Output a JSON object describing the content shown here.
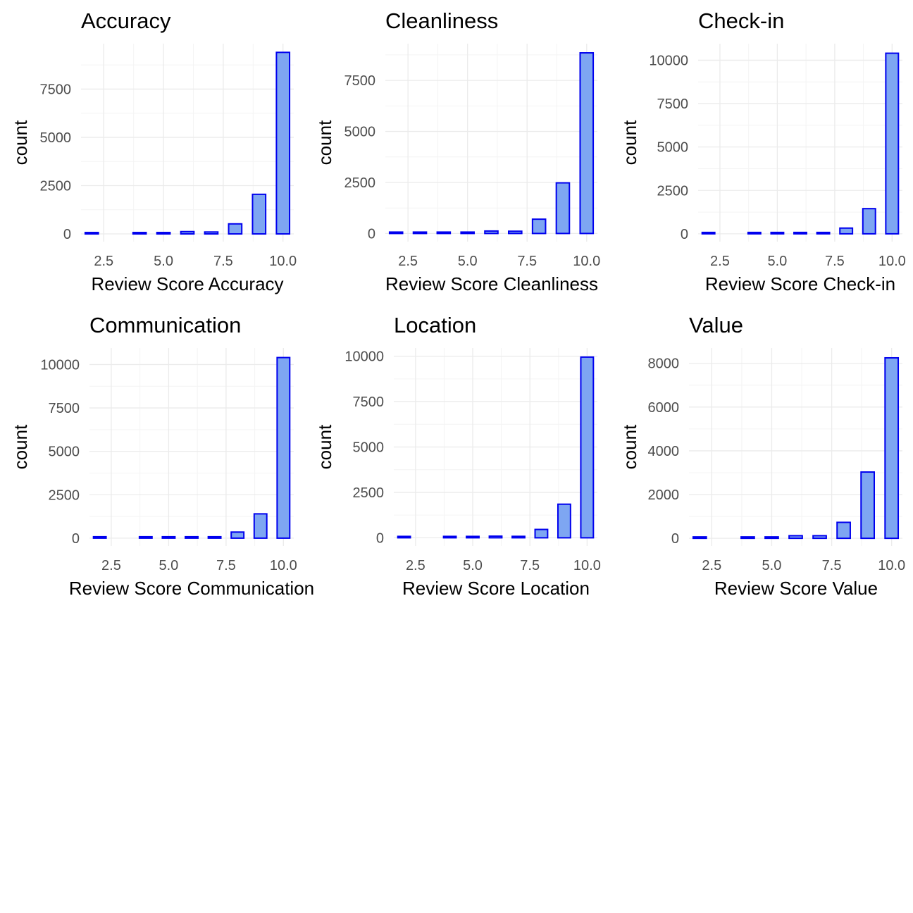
{
  "colors": {
    "bar_fill": "#7ea6f2",
    "bar_stroke": "#0000ee",
    "grid": "#ebebeb",
    "tick_text": "#4d4d4d"
  },
  "chart_data": [
    {
      "type": "bar",
      "title": "Accuracy",
      "xlabel": "Review Score Accuracy",
      "ylabel": "count",
      "x": [
        2,
        4,
        5,
        6,
        7,
        8,
        9,
        10
      ],
      "values": [
        45,
        25,
        30,
        120,
        100,
        520,
        2050,
        9400
      ],
      "xlim": [
        1.55,
        10.45
      ],
      "ylim": [
        -400,
        9850
      ],
      "x_ticks": [
        2.5,
        5.0,
        7.5,
        10.0
      ],
      "x_tick_labels": [
        "2.5",
        "5.0",
        "7.5",
        "10.0"
      ],
      "y_ticks": [
        0,
        2500,
        5000,
        7500
      ],
      "y_tick_labels": [
        "0",
        "2500",
        "5000",
        "7500"
      ],
      "grid": true
    },
    {
      "type": "bar",
      "title": "Cleanliness",
      "xlabel": "Review Score Cleanliness",
      "ylabel": "count",
      "x": [
        2,
        3,
        4,
        5,
        6,
        7,
        8,
        9,
        10
      ],
      "values": [
        45,
        25,
        30,
        30,
        120,
        110,
        700,
        2480,
        8850
      ],
      "xlim": [
        1.55,
        10.45
      ],
      "ylim": [
        -400,
        9300
      ],
      "x_ticks": [
        2.5,
        5.0,
        7.5,
        10.0
      ],
      "x_tick_labels": [
        "2.5",
        "5.0",
        "7.5",
        "10.0"
      ],
      "y_ticks": [
        0,
        2500,
        5000,
        7500
      ],
      "y_tick_labels": [
        "0",
        "2500",
        "5000",
        "7500"
      ],
      "grid": true
    },
    {
      "type": "bar",
      "title": "Check-in",
      "xlabel": "Review Score Check-in",
      "ylabel": "count",
      "x": [
        2,
        4,
        5,
        6,
        7,
        8,
        9,
        10
      ],
      "values": [
        45,
        25,
        30,
        60,
        60,
        330,
        1450,
        10400
      ],
      "xlim": [
        1.55,
        10.45
      ],
      "ylim": [
        -450,
        10950
      ],
      "x_ticks": [
        2.5,
        5.0,
        7.5,
        10.0
      ],
      "x_tick_labels": [
        "2.5",
        "5.0",
        "7.5",
        "10.0"
      ],
      "y_ticks": [
        0,
        2500,
        5000,
        7500,
        10000
      ],
      "y_tick_labels": [
        "0",
        "2500",
        "5000",
        "7500",
        "10000"
      ],
      "grid": true
    },
    {
      "type": "bar",
      "title": "Communication",
      "xlabel": "Review Score Communication",
      "ylabel": "count",
      "x": [
        2,
        4,
        5,
        6,
        7,
        8,
        9,
        10
      ],
      "values": [
        45,
        25,
        30,
        60,
        60,
        350,
        1400,
        10400
      ],
      "xlim": [
        1.55,
        10.45
      ],
      "ylim": [
        -450,
        10950
      ],
      "x_ticks": [
        2.5,
        5.0,
        7.5,
        10.0
      ],
      "x_tick_labels": [
        "2.5",
        "5.0",
        "7.5",
        "10.0"
      ],
      "y_ticks": [
        0,
        2500,
        5000,
        7500,
        10000
      ],
      "y_tick_labels": [
        "0",
        "2500",
        "5000",
        "7500",
        "10000"
      ],
      "grid": true
    },
    {
      "type": "bar",
      "title": "Location",
      "xlabel": "Review Score Location",
      "ylabel": "count",
      "x": [
        2,
        4,
        5,
        6,
        7,
        8,
        9,
        10
      ],
      "values": [
        20,
        25,
        30,
        90,
        80,
        460,
        1850,
        9950
      ],
      "xlim": [
        1.55,
        10.45
      ],
      "ylim": [
        -450,
        10450
      ],
      "x_ticks": [
        2.5,
        5.0,
        7.5,
        10.0
      ],
      "x_tick_labels": [
        "2.5",
        "5.0",
        "7.5",
        "10.0"
      ],
      "y_ticks": [
        0,
        2500,
        5000,
        7500,
        10000
      ],
      "y_tick_labels": [
        "0",
        "2500",
        "5000",
        "7500",
        "10000"
      ],
      "grid": true
    },
    {
      "type": "bar",
      "title": "Value",
      "xlabel": "Review Score Value",
      "ylabel": "count",
      "x": [
        2,
        4,
        5,
        6,
        7,
        8,
        9,
        10
      ],
      "values": [
        45,
        25,
        30,
        120,
        120,
        730,
        3030,
        8250
      ],
      "xlim": [
        1.55,
        10.45
      ],
      "ylim": [
        -350,
        8700
      ],
      "x_ticks": [
        2.5,
        5.0,
        7.5,
        10.0
      ],
      "x_tick_labels": [
        "2.5",
        "5.0",
        "7.5",
        "10.0"
      ],
      "y_ticks": [
        0,
        2000,
        4000,
        6000,
        8000
      ],
      "y_tick_labels": [
        "0",
        "2000",
        "4000",
        "6000",
        "8000"
      ],
      "grid": true
    }
  ]
}
